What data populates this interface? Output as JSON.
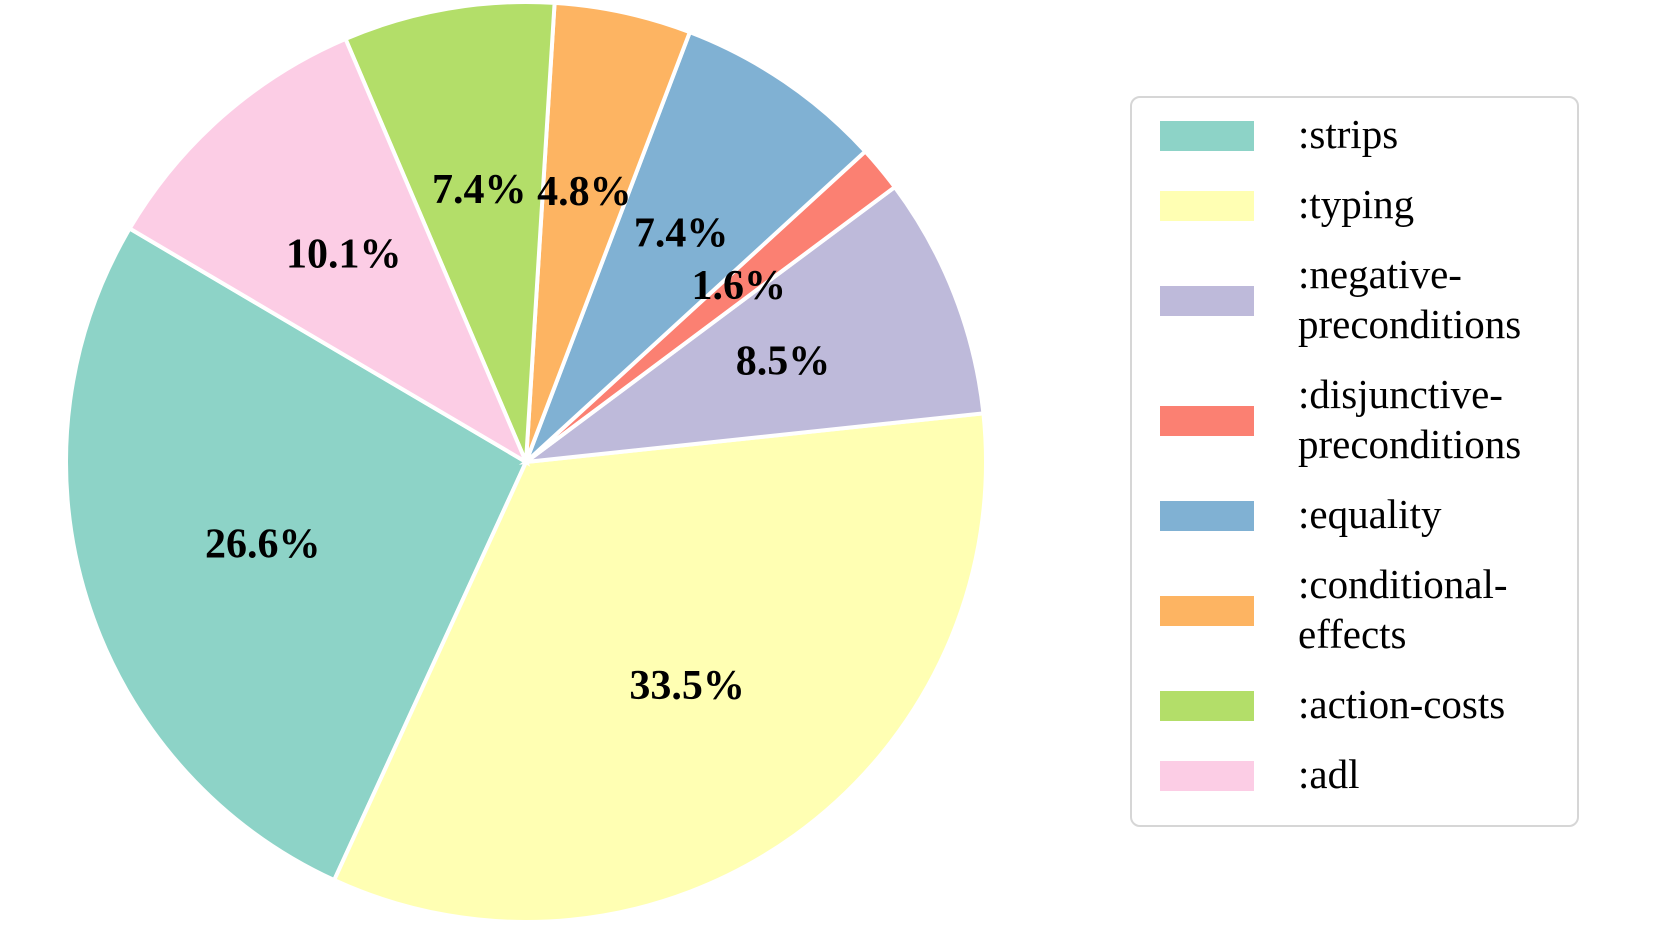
{
  "chart_data": {
    "type": "pie",
    "title": "",
    "legend": "right",
    "slices": [
      {
        "label": ":strips",
        "value": 26.6,
        "pct_text": "26.6%",
        "color": "#8dd3c7"
      },
      {
        "label": ":typing",
        "value": 33.5,
        "pct_text": "33.5%",
        "color": "#ffffb3"
      },
      {
        "label": ":negative-preconditions",
        "value": 8.5,
        "pct_text": "8.5%",
        "color": "#bebada"
      },
      {
        "label": ":disjunctive-preconditions",
        "value": 1.6,
        "pct_text": "1.6%",
        "color": "#fb8072"
      },
      {
        "label": ":equality",
        "value": 7.4,
        "pct_text": "7.4%",
        "color": "#80b1d3"
      },
      {
        "label": ":conditional-effects",
        "value": 4.8,
        "pct_text": "4.8%",
        "color": "#fdb462"
      },
      {
        "label": ":action-costs",
        "value": 7.4,
        "pct_text": "7.4%",
        "color": "#b3de69"
      },
      {
        "label": ":adl",
        "value": 10.1,
        "pct_text": "10.1%",
        "color": "#fccde5"
      }
    ],
    "legend_entries": [
      {
        "lines": [
          ":strips"
        ],
        "color": "#8dd3c7"
      },
      {
        "lines": [
          ":typing"
        ],
        "color": "#ffffb3"
      },
      {
        "lines": [
          ":negative-",
          "preconditions"
        ],
        "color": "#bebada"
      },
      {
        "lines": [
          ":disjunctive-",
          "preconditions"
        ],
        "color": "#fb8072"
      },
      {
        "lines": [
          ":equality"
        ],
        "color": "#80b1d3"
      },
      {
        "lines": [
          ":conditional-",
          "effects"
        ],
        "color": "#fdb462"
      },
      {
        "lines": [
          ":action-costs"
        ],
        "color": "#b3de69"
      },
      {
        "lines": [
          ":adl"
        ],
        "color": "#fccde5"
      }
    ]
  }
}
